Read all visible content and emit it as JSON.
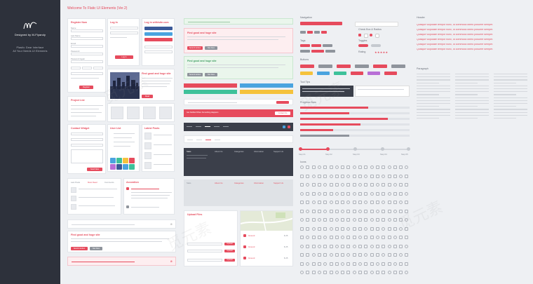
{
  "sidebar": {
    "designer": "Designed by M-Flyandy",
    "tagline1": "Plastic Gear Interface",
    "tagline2": "All Your Needs UI Elements"
  },
  "page": {
    "title": "Welcome To Flatic UI Elements (Ver.2)"
  },
  "register": {
    "title": "Register Now",
    "fields": [
      "Name",
      "Last Name",
      "Email",
      "Password",
      "Password Again"
    ],
    "button": "Register"
  },
  "login": {
    "title": "Log In",
    "button": "Log In",
    "social_title": "Log in with/site.com",
    "social": [
      "Facebook",
      "Twitter",
      "Google+"
    ]
  },
  "blog": {
    "title": "Find good and huge site",
    "button": "Read"
  },
  "projects": {
    "title": "Project List"
  },
  "contact": {
    "title": "Contact Widget",
    "button": "Send Now"
  },
  "userlist": {
    "title": "User List"
  },
  "latest": {
    "title": "Latest Posts"
  },
  "tabs": {
    "items": [
      "Last Posts",
      "Most Read",
      "Comments"
    ]
  },
  "accordion": {
    "title": "Accordion"
  },
  "panels": {
    "title": "Find good and huge site",
    "button_primary": "Send & Action",
    "button_secondary": "Not Now"
  },
  "alerts": {
    "notice": "Get Notified When Something Happens",
    "button": "Contact Us"
  },
  "footer": {
    "title": "Stats",
    "columns": [
      "About Us",
      "Categories",
      "Information",
      "Support Us"
    ]
  },
  "search": {
    "title": "Upload Files",
    "button": "Upload"
  },
  "listings": {
    "items": [
      "Ground",
      "Ground",
      "Ground"
    ],
    "prices": [
      "$ 25",
      "$ 25",
      "$ 25"
    ]
  },
  "right": {
    "navigation": "Navigation",
    "check": "Check Box & Radios",
    "tags": "Tags",
    "toggles": "Toggles",
    "rating": "Rating",
    "buttons": "Buttons",
    "tooltips": "Tool Tips",
    "progress": "Progress Bars",
    "icons": "Icons",
    "steps": [
      "Step 01",
      "Step 02",
      "Step 03",
      "Step 04",
      "Step 05"
    ]
  },
  "typography": {
    "header": "Header",
    "paragraph": "Paragraph",
    "lines": [
      "Quisque vulputate tempor nunc, id commodo libero posuere semper.",
      "Quisque vulputate tempor nunc, id commodo libero posuere semper.",
      "Quisque vulputate tempor nunc, id commodo libero posuere semper.",
      "Quisque vulputate tempor nunc, id commodo libero posuere semper.",
      "Quisque vulputate tempor nunc, id commodo libero posuere semper.",
      "Quisque vulputate tempor nunc, id commodo libero posuere semper."
    ]
  },
  "colors": {
    "accent": "#e64b5d",
    "blue": "#4aa3df",
    "green": "#3ec19a",
    "yellow": "#f5c23c",
    "purple": "#b86fd6",
    "dark": "#2d313b"
  },
  "progress_values": [
    0.62,
    0.45,
    0.8,
    0.55,
    0.3
  ],
  "watermark": "觅元素"
}
